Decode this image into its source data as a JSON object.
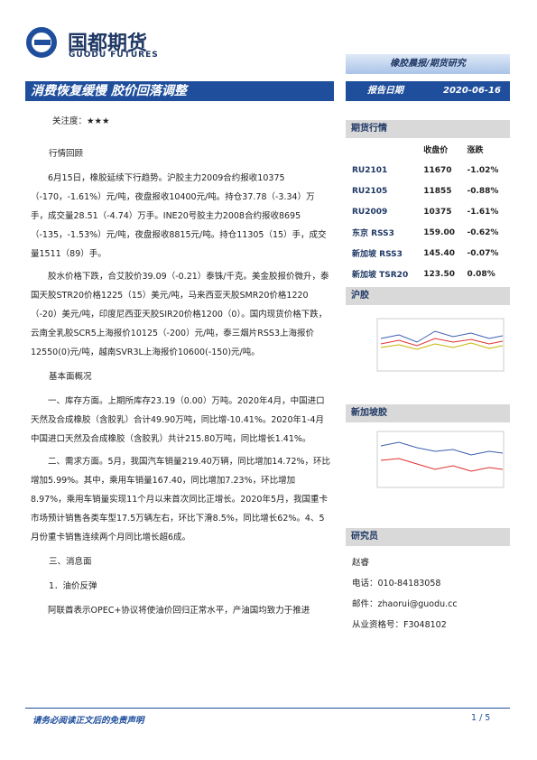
{
  "header": {
    "logo_cn": "国都期货",
    "logo_en": "GUODU FUTURES",
    "category": "橡胶晨报/期货研究",
    "title": "消费恢复缓慢 胶价回落调整",
    "date_label": "报告日期",
    "date": "2020-06-16"
  },
  "attention": {
    "label": "关注度：",
    "stars": "★★★"
  },
  "body": [
    "行情回顾",
    "6月15日，橡胶延续下行趋势。沪胶主力2009合约报收10375（-170，-1.61%）元/吨，夜盘报收10400元/吨。持仓37.78（-3.34）万手，成交量28.51（-4.74）万手。INE20号胶主力2008合约报收8695（-135，-1.53%）元/吨，夜盘报收8815元/吨。持仓11305（15）手，成交量1511（89）手。",
    "胶水价格下跌，合艾胶价39.09（-0.21）泰铢/千克。美金胶报价微升，泰国天胶STR20价格1225（15）美元/吨，马来西亚天胶SMR20价格1220（-20）美元/吨，印度尼西亚天胶SIR20价格1200（0）。国内现货价格下跌，云南全乳胶SCR5上海报价10125（-200）元/吨，泰三烟片RSS3上海报价12550(0)元/吨，越南SVR3L上海报价10600(-150)元/吨。",
    "基本面概况",
    "一、库存方面。上期所库存23.19（0.00）万吨。2020年4月，中国进口天然及合成橡胶（含胶乳）合计49.90万吨，同比增-10.41%。2020年1-4月中国进口天然及合成橡胶（含胶乳）共计215.80万吨，同比增长1.41%。",
    "二、需求方面。5月，我国汽车销量219.40万辆，同比增加14.72%，环比增加5.99%。其中，乘用车销量167.40，同比增加7.23%，环比增加8.97%，乘用车销量实现11个月以来首次同比正增长。2020年5月，我国重卡市场预计销售各类车型17.5万辆左右，环比下滑8.5%，同比增长62%。4、5月份重卡销售连续两个月同比增长超6成。",
    "三、消息面",
    "1．油价反弹",
    "阿联酋表示OPEC+协议将使油价回归正常水平，产油国均致力于推进"
  ],
  "sidebar": {
    "market_title": "期货行情",
    "table": {
      "header": [
        "收盘价",
        "涨跌"
      ],
      "rows": [
        [
          "RU2101",
          "11670",
          "-1.02%"
        ],
        [
          "RU2105",
          "11855",
          "-0.88%"
        ],
        [
          "RU2009",
          "10375",
          "-1.61%"
        ],
        [
          "东京 RSS3",
          "159.00",
          "-0.62%"
        ],
        [
          "新加坡 RSS3",
          "145.40",
          "-0.07%"
        ],
        [
          "新加坡 TSR20",
          "123.50",
          "0.08%"
        ]
      ]
    },
    "shfe_title": "沪胶",
    "sgx_title": "新加坡胶",
    "researcher_title": "研究员",
    "researcher": "赵睿",
    "phone": "电话：010-84183058",
    "email": "邮件：zhaorui@guodu.cc",
    "license": "从业资格号：F3048102"
  },
  "footer": {
    "disclaimer": "请务必阅读正文后的免责声明",
    "page": "1 / 5"
  }
}
